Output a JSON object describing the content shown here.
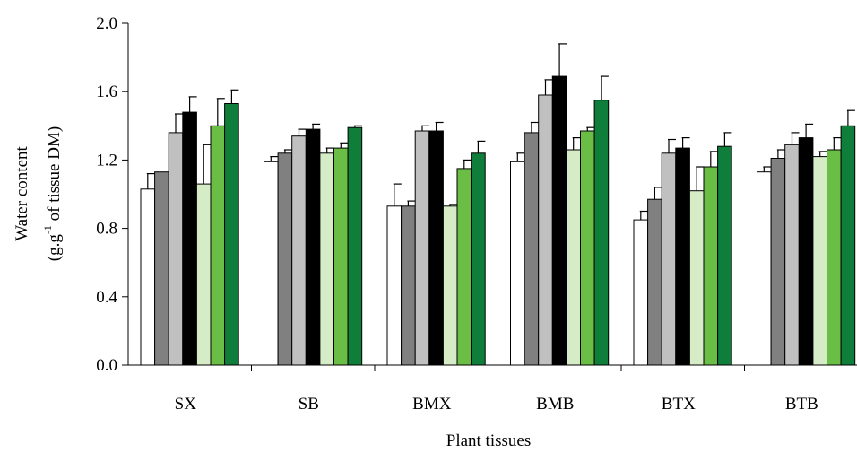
{
  "chart_data": {
    "type": "bar",
    "title": "",
    "xlabel": "Plant tissues",
    "ylabel": "Water content",
    "ylabel_units": {
      "open": "(g.g",
      "superscript": "-1",
      "close": " of tissue DM)"
    },
    "ylim": [
      0,
      2.0
    ],
    "yticks": [
      "0.0",
      "0.4",
      "0.8",
      "1.2",
      "1.6",
      "2.0"
    ],
    "categories": [
      "SX",
      "SB",
      "BMX",
      "BMB",
      "BTX",
      "BTB"
    ],
    "grid": false,
    "legend": "none",
    "error_bars": true,
    "series": [
      {
        "color": "#ffffff",
        "values": [
          1.03,
          1.19,
          0.93,
          1.19,
          0.85,
          1.13
        ],
        "errors": [
          0.09,
          0.03,
          0.13,
          0.05,
          0.05,
          0.03
        ]
      },
      {
        "color": "#808080",
        "values": [
          1.13,
          1.24,
          0.93,
          1.36,
          0.97,
          1.21
        ],
        "errors": [
          0.0,
          0.02,
          0.03,
          0.06,
          0.07,
          0.05
        ]
      },
      {
        "color": "#c0c0c0",
        "values": [
          1.36,
          1.34,
          1.37,
          1.58,
          1.24,
          1.29
        ],
        "errors": [
          0.11,
          0.04,
          0.03,
          0.09,
          0.08,
          0.07
        ]
      },
      {
        "color": "#000000",
        "values": [
          1.48,
          1.38,
          1.37,
          1.69,
          1.27,
          1.33
        ],
        "errors": [
          0.09,
          0.03,
          0.05,
          0.19,
          0.06,
          0.08
        ]
      },
      {
        "color": "#d5ecc6",
        "values": [
          1.06,
          1.24,
          0.93,
          1.26,
          1.02,
          1.22
        ],
        "errors": [
          0.23,
          0.03,
          0.01,
          0.07,
          0.14,
          0.03
        ]
      },
      {
        "color": "#6abe45",
        "values": [
          1.4,
          1.27,
          1.15,
          1.37,
          1.16,
          1.26
        ],
        "errors": [
          0.16,
          0.03,
          0.05,
          0.02,
          0.09,
          0.07
        ]
      },
      {
        "color": "#0e7e3a",
        "values": [
          1.53,
          1.39,
          1.24,
          1.55,
          1.28,
          1.4
        ],
        "errors": [
          0.08,
          0.01,
          0.07,
          0.14,
          0.08,
          0.09
        ]
      }
    ]
  }
}
